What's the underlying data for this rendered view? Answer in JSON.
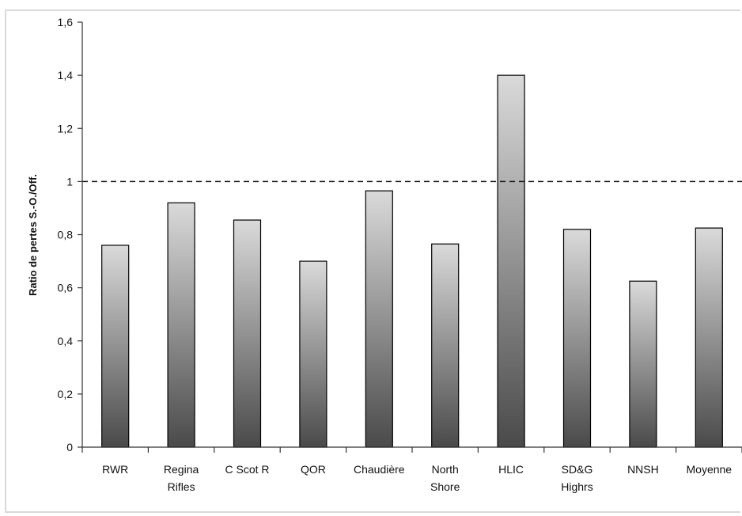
{
  "chart_data": {
    "type": "bar",
    "title": "",
    "xlabel": "",
    "ylabel": "Ratio de pertes S.-O./Off.",
    "categories": [
      [
        "RWR"
      ],
      [
        "Regina",
        "Rifles"
      ],
      [
        "C Scot R"
      ],
      [
        "QOR"
      ],
      [
        "Chaudière"
      ],
      [
        "North",
        "Shore"
      ],
      [
        "HLIC"
      ],
      [
        "SD&G",
        "Highrs"
      ],
      [
        "NNSH"
      ],
      [
        "Moyenne"
      ]
    ],
    "values": [
      0.76,
      0.92,
      0.855,
      0.7,
      0.965,
      0.765,
      1.4,
      0.82,
      0.625,
      0.825
    ],
    "ylim": [
      0,
      1.6
    ],
    "yticks": [
      0,
      0.2,
      0.4,
      0.6,
      0.8,
      1,
      1.2,
      1.4,
      1.6
    ],
    "ytick_labels": [
      "0",
      "0,2",
      "0,4",
      "0,6",
      "0,8",
      "1",
      "1,2",
      "1,4",
      "1,6"
    ],
    "reference_line": {
      "value": 1,
      "style": "dashed"
    },
    "grid": false,
    "legend": "none",
    "colors": {
      "bar_top": "#dadada",
      "bar_bottom": "#4a4a4a",
      "bar_stroke": "#000000",
      "axis": "#333333"
    }
  }
}
